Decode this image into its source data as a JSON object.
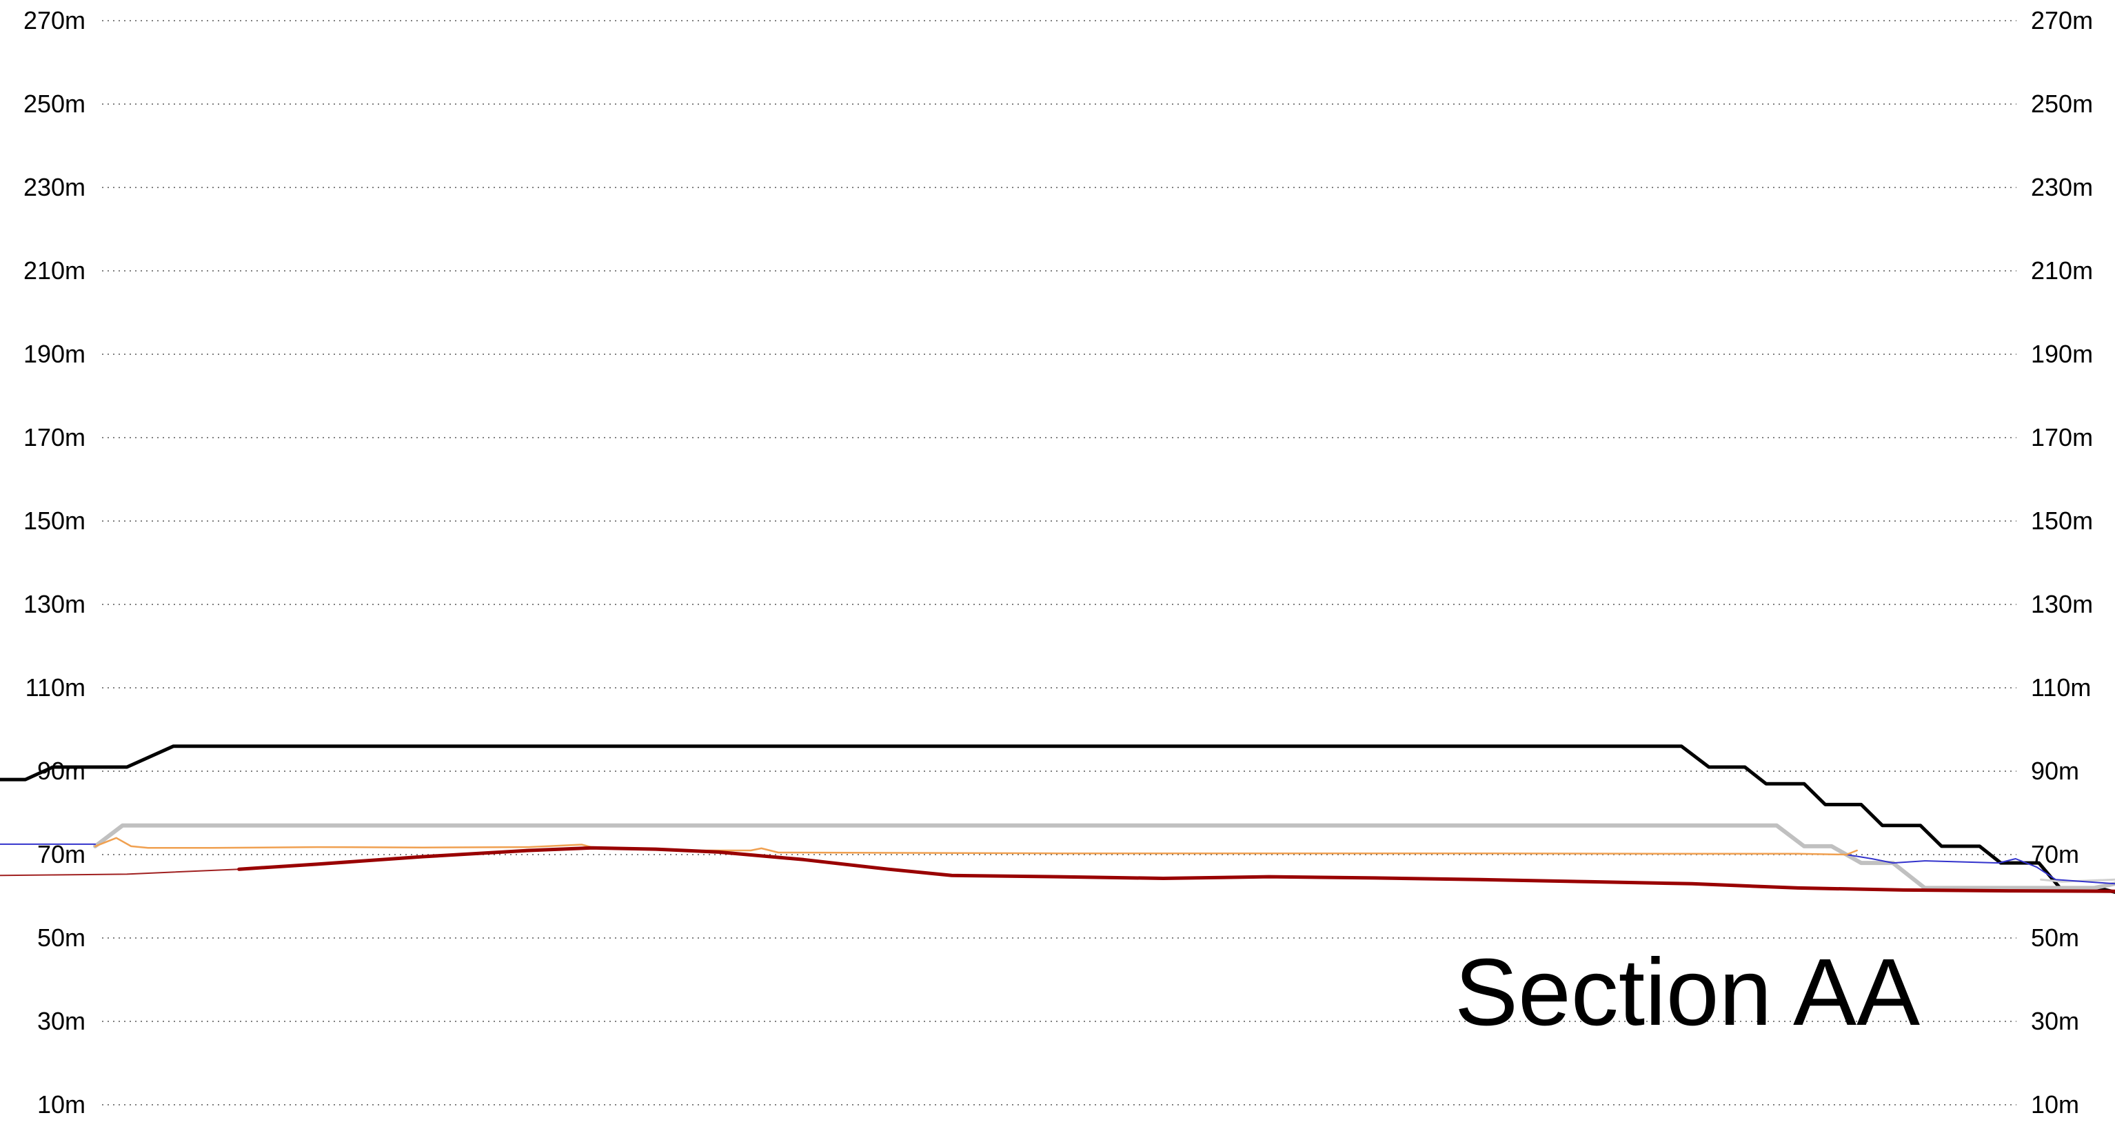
{
  "chart_data": {
    "type": "line",
    "title": "Section AA",
    "y_unit": "m",
    "ylim": [
      10,
      270
    ],
    "y_ticks": [
      "270m",
      "250m",
      "230m",
      "210m",
      "190m",
      "170m",
      "150m",
      "130m",
      "110m",
      "90m",
      "70m",
      "50m",
      "30m",
      "10m"
    ],
    "grid": true,
    "xlim": [
      0,
      100
    ],
    "series": [
      {
        "color": "#000000",
        "width": 5,
        "points": [
          [
            0,
            88
          ],
          [
            1.2,
            88
          ],
          [
            2.5,
            91
          ],
          [
            6,
            91
          ],
          [
            8.2,
            96
          ],
          [
            79.5,
            96
          ],
          [
            80.8,
            91
          ],
          [
            82.5,
            91
          ],
          [
            83.5,
            87
          ],
          [
            85.3,
            87
          ],
          [
            86.3,
            82
          ],
          [
            88,
            82
          ],
          [
            89,
            77
          ],
          [
            90.8,
            77
          ],
          [
            91.8,
            72
          ],
          [
            93.6,
            72
          ],
          [
            94.6,
            68
          ],
          [
            96.4,
            68
          ],
          [
            97.4,
            62
          ],
          [
            99.2,
            62
          ],
          [
            100,
            61
          ]
        ]
      },
      {
        "color": "#c0c0c0",
        "width": 6,
        "points": [
          [
            4.5,
            72
          ],
          [
            5.8,
            77
          ],
          [
            84,
            77
          ],
          [
            85.3,
            72
          ],
          [
            86.6,
            72
          ],
          [
            88,
            68
          ],
          [
            89.5,
            68
          ],
          [
            91,
            62
          ],
          [
            99,
            62
          ],
          [
            100,
            63
          ]
        ]
      },
      {
        "color": "#d0d0d0",
        "width": 3,
        "points": [
          [
            96.5,
            64
          ],
          [
            97.5,
            63.5
          ],
          [
            100,
            64
          ]
        ]
      },
      {
        "color": "#3333cc",
        "width": 2,
        "points": [
          [
            0,
            72.5
          ],
          [
            4.5,
            72.5
          ]
        ]
      },
      {
        "color": "#3333cc",
        "width": 2,
        "points": [
          [
            87.3,
            70
          ],
          [
            88.5,
            69
          ],
          [
            89.5,
            68
          ],
          [
            91,
            68.5
          ],
          [
            94.5,
            68
          ],
          [
            95.3,
            69
          ],
          [
            96.3,
            67
          ],
          [
            97.2,
            64
          ],
          [
            100,
            63
          ]
        ]
      },
      {
        "color": "#f0a050",
        "width": 2.5,
        "points": [
          [
            4.5,
            72
          ],
          [
            5.5,
            74
          ],
          [
            6.2,
            72
          ],
          [
            7,
            71.6
          ],
          [
            10,
            71.6
          ],
          [
            15,
            71.8
          ],
          [
            20,
            71.7
          ],
          [
            25,
            71.8
          ],
          [
            27.5,
            72.4
          ],
          [
            28.2,
            71.5
          ],
          [
            32,
            71
          ],
          [
            35.5,
            71
          ],
          [
            36,
            71.5
          ],
          [
            36.8,
            70.5
          ],
          [
            50,
            70.3
          ],
          [
            70,
            70.3
          ],
          [
            80,
            70.2
          ],
          [
            85,
            70.2
          ],
          [
            87.3,
            70
          ],
          [
            87.8,
            71
          ]
        ]
      },
      {
        "color": "#a02020",
        "width": 2,
        "points": [
          [
            0,
            65
          ],
          [
            6,
            65.3
          ],
          [
            11.3,
            66.5
          ]
        ]
      },
      {
        "color": "#990000",
        "width": 5,
        "points": [
          [
            11.3,
            66.5
          ],
          [
            15,
            67.7
          ],
          [
            20,
            69.5
          ],
          [
            25,
            71
          ],
          [
            28,
            71.6
          ],
          [
            31,
            71.3
          ],
          [
            34,
            70.6
          ],
          [
            38,
            68.8
          ],
          [
            42,
            66.5
          ],
          [
            45,
            65
          ],
          [
            50,
            64.7
          ],
          [
            55,
            64.3
          ],
          [
            60,
            64.7
          ],
          [
            65,
            64.4
          ],
          [
            70,
            64
          ],
          [
            75,
            63.5
          ],
          [
            80,
            63
          ],
          [
            85,
            62
          ],
          [
            90,
            61.5
          ],
          [
            95,
            61.3
          ],
          [
            100,
            61.2
          ]
        ]
      }
    ]
  }
}
